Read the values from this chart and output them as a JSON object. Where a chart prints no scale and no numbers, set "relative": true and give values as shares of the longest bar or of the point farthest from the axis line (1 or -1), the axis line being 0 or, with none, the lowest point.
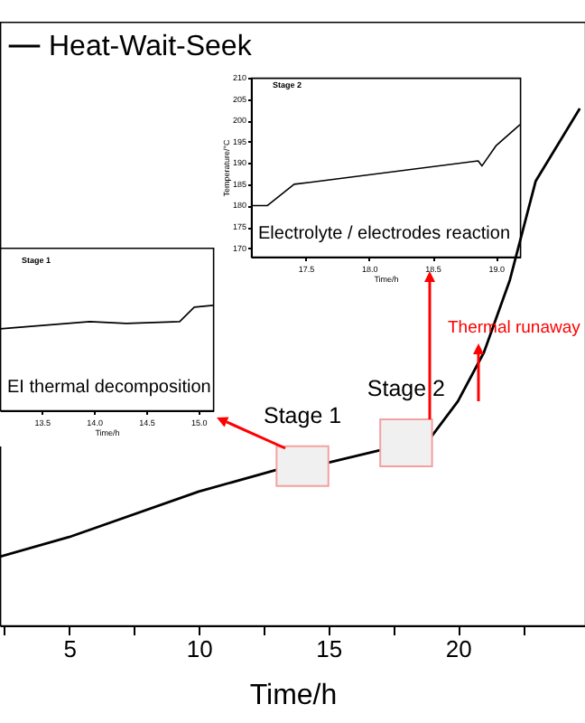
{
  "chart_data": [
    {
      "type": "line",
      "relative": true,
      "xlabel": "Time/h",
      "xlim": [
        2.33,
        24.9
      ],
      "xticks": [
        {
          "value": 2.5,
          "label": null
        },
        5,
        {
          "value": 7.5,
          "label": null
        },
        10,
        {
          "value": 12.5,
          "label": null
        },
        15,
        {
          "value": 17.5,
          "label": null
        },
        20,
        {
          "value": 22.5,
          "label": null
        }
      ],
      "legend": "top left",
      "x": [
        2.33,
        5,
        10,
        13,
        15,
        17,
        19,
        20,
        21,
        22,
        23,
        24.7
      ],
      "series": [
        {
          "name": "Heat-Wait-Seek",
          "color": "#000000",
          "values": [
            0.133,
            0.171,
            0.259,
            0.301,
            0.315,
            0.339,
            0.367,
            0.434,
            0.528,
            0.668,
            0.86,
            1
          ]
        }
      ],
      "bands": [
        {
          "axis": "x",
          "from": 13,
          "to": 15,
          "label": "Stage 1",
          "color": "#f0f0f0"
        },
        {
          "axis": "x",
          "from": 17,
          "to": 19,
          "label": "Stage 2",
          "color": "#f0f0f0"
        }
      ],
      "annotations": [
        "Thermal runaway"
      ]
    },
    {
      "type": "line",
      "relative": true,
      "title": "Stage 1",
      "xlabel": "Time/h",
      "xlim": [
        13.1,
        15.14
      ],
      "xticks": [
        13.5,
        {
          "value": 14,
          "label": "14.0"
        },
        14.5,
        {
          "value": 15,
          "label": "15.0"
        }
      ],
      "x": [
        13.1,
        13.96,
        14.31,
        14.82,
        14.96,
        15.14
      ],
      "series": [
        {
          "color": "#000000",
          "values": [
            0.776,
            0.845,
            0.828,
            0.845,
            0.983,
            1
          ]
        }
      ],
      "annotations": [
        "EI thermal decomposition"
      ]
    },
    {
      "type": "line",
      "title": "Stage 2",
      "xlabel": "Time/h",
      "ylabel": "Temperature/°C",
      "xlim": [
        17.07,
        19.19
      ],
      "xticks": [
        17.5,
        {
          "value": 18,
          "label": "18.0"
        },
        18.5,
        {
          "value": 19,
          "label": "19.0"
        }
      ],
      "ylim": [
        168,
        210
      ],
      "yticks": [
        170,
        175,
        180,
        185,
        190,
        195,
        200,
        205,
        210
      ],
      "x": [
        17.07,
        17.2,
        17.41,
        17.55,
        18.86,
        18.89,
        19.0,
        19.19
      ],
      "series": [
        {
          "color": "#000000",
          "values": [
            180,
            180,
            185,
            185.5,
            190.5,
            189.3,
            194,
            199
          ]
        }
      ],
      "annotations": [
        "Electrolyte / electrodes reaction"
      ]
    }
  ]
}
